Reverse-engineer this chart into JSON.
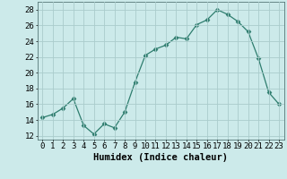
{
  "x": [
    0,
    1,
    2,
    3,
    4,
    5,
    6,
    7,
    8,
    9,
    10,
    11,
    12,
    13,
    14,
    15,
    16,
    17,
    18,
    19,
    20,
    21,
    22,
    23
  ],
  "y": [
    14.3,
    14.7,
    15.5,
    16.7,
    13.3,
    12.2,
    13.5,
    13.0,
    15.0,
    18.8,
    22.2,
    23.0,
    23.5,
    24.5,
    24.3,
    26.1,
    26.7,
    28.0,
    27.4,
    26.5,
    25.2,
    21.8,
    17.5,
    16.0
  ],
  "line_color": "#2e7d6e",
  "marker": "D",
  "marker_size": 2.5,
  "bg_color": "#cceaea",
  "grid_color": "#aacccc",
  "xlabel": "Humidex (Indice chaleur)",
  "xlim": [
    -0.5,
    23.5
  ],
  "ylim": [
    11.5,
    29.0
  ],
  "xticks": [
    0,
    1,
    2,
    3,
    4,
    5,
    6,
    7,
    8,
    9,
    10,
    11,
    12,
    13,
    14,
    15,
    16,
    17,
    18,
    19,
    20,
    21,
    22,
    23
  ],
  "yticks": [
    12,
    14,
    16,
    18,
    20,
    22,
    24,
    26,
    28
  ],
  "tick_fontsize": 6.5,
  "xlabel_fontsize": 7.5
}
